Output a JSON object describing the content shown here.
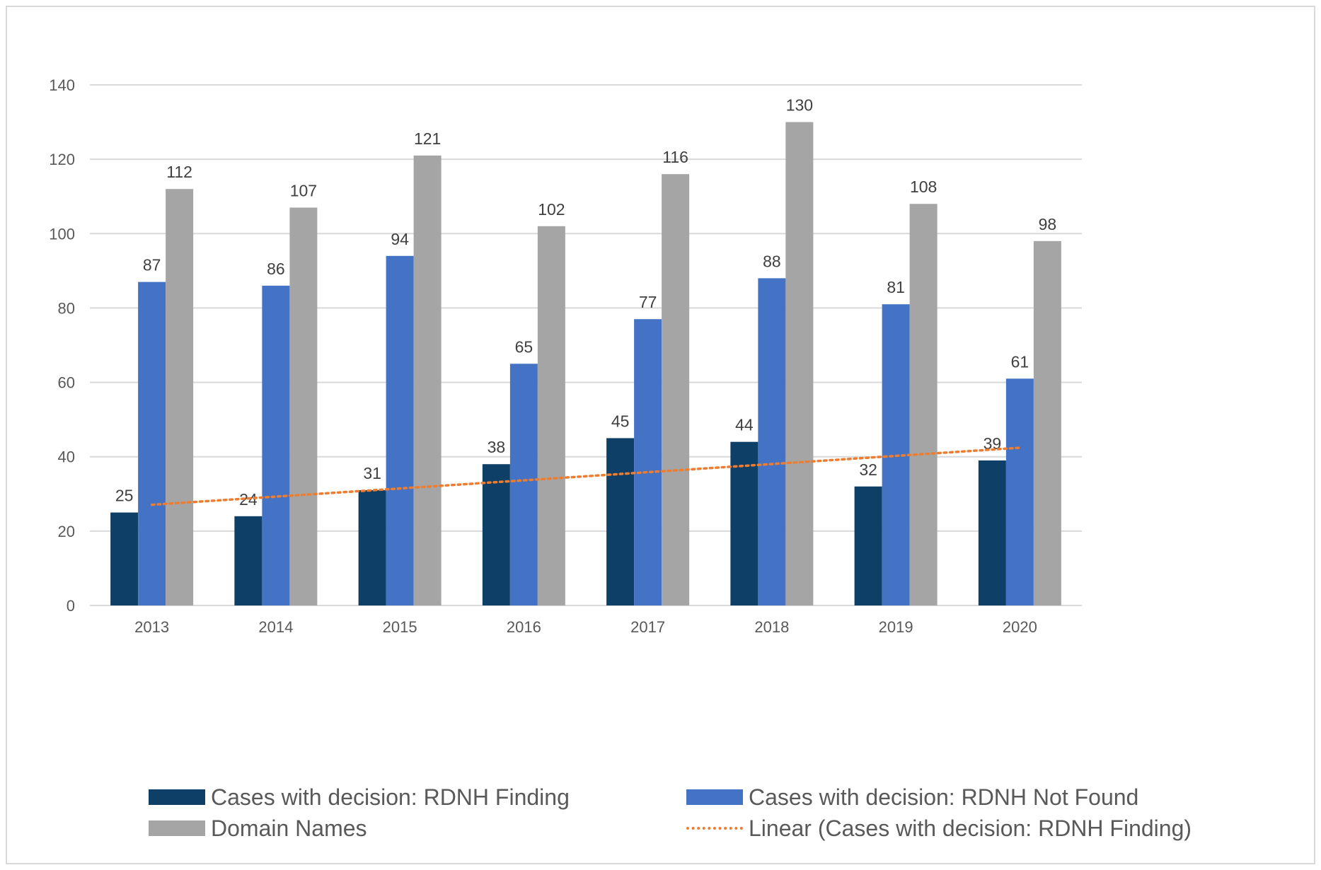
{
  "chart_data": {
    "type": "bar",
    "categories": [
      "2013",
      "2014",
      "2015",
      "2016",
      "2017",
      "2018",
      "2019",
      "2020"
    ],
    "series": [
      {
        "name": "Cases with decision: RDNH Finding",
        "values": [
          25,
          24,
          31,
          38,
          45,
          44,
          32,
          39
        ],
        "color": "#0e3f66"
      },
      {
        "name": "Cases with decision: RDNH Not Found",
        "values": [
          87,
          86,
          94,
          65,
          77,
          88,
          81,
          61
        ],
        "color": "#4472c4"
      },
      {
        "name": "Domain Names",
        "values": [
          112,
          107,
          121,
          102,
          116,
          130,
          108,
          98
        ],
        "color": "#a5a5a5"
      }
    ],
    "trendline": {
      "name": "Linear (Cases with decision: RDNH Finding)",
      "type": "linear",
      "series": "Cases with decision: RDNH Finding",
      "color": "#ed7d31"
    },
    "ylim": [
      0,
      140
    ],
    "yticks": [
      "0",
      "20",
      "40",
      "60",
      "80",
      "100",
      "120",
      "140"
    ],
    "grid": true,
    "legend_position": "bottom",
    "data_labels": true
  }
}
